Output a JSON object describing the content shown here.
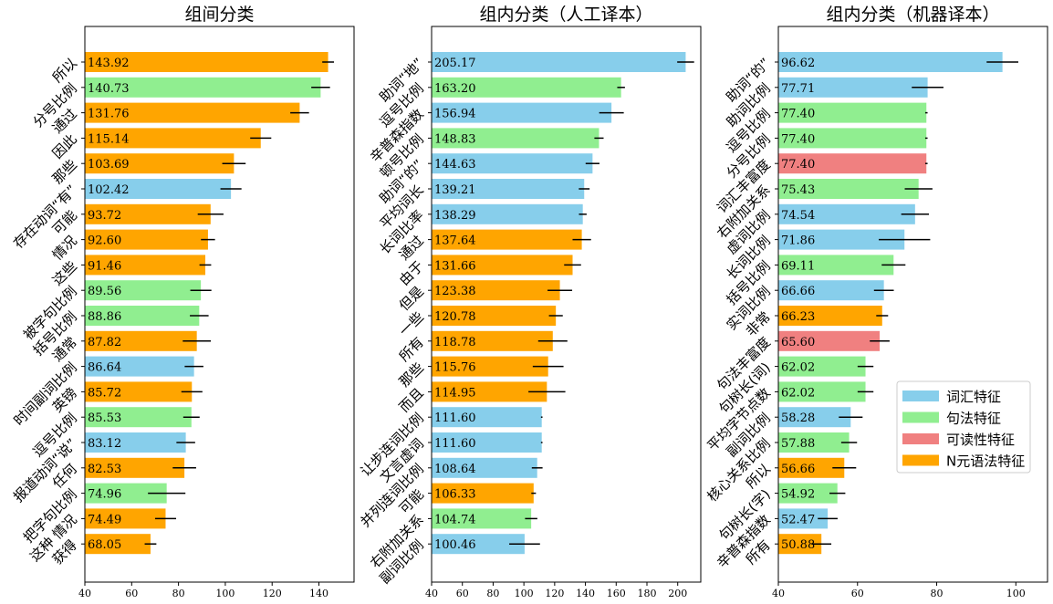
{
  "colors": {
    "词汇特征": "#87ceeb",
    "句法特征": "#90ee90",
    "可读性特征": "#f08080",
    "N元语法特征": "#ffa500"
  },
  "legend": {
    "placement": "right",
    "entries": [
      {
        "label": "词汇特征",
        "group": "词汇特征"
      },
      {
        "label": "句法特征",
        "group": "句法特征"
      },
      {
        "label": "可读性特征",
        "group": "可读性特征"
      },
      {
        "label": "N元语法特征",
        "group": "N元语法特征"
      }
    ]
  },
  "chart_data": [
    {
      "type": "bar",
      "orientation": "horizontal",
      "title": "组间分类",
      "xlim": [
        40,
        155
      ],
      "xticks": [
        40,
        60,
        80,
        100,
        120,
        140
      ],
      "bars": [
        {
          "label": "所以",
          "value": 143.92,
          "value_label": "143.92",
          "err": 2.5,
          "group": "N元语法特征"
        },
        {
          "label": "分号比例",
          "value": 140.73,
          "value_label": "140.73",
          "err": 4,
          "group": "句法特征"
        },
        {
          "label": "通过",
          "value": 131.76,
          "value_label": "131.76",
          "err": 4,
          "group": "N元语法特征"
        },
        {
          "label": "因此",
          "value": 115.14,
          "value_label": "115.14",
          "err": 4.5,
          "group": "N元语法特征"
        },
        {
          "label": "那些",
          "value": 103.69,
          "value_label": "103.69",
          "err": 5,
          "group": "N元语法特征"
        },
        {
          "label": "存在动词“有”",
          "value": 102.42,
          "value_label": "102.42",
          "err": 4.5,
          "group": "词汇特征"
        },
        {
          "label": "可能",
          "value": 93.72,
          "value_label": "93.72",
          "err": 5.5,
          "group": "N元语法特征"
        },
        {
          "label": "情况",
          "value": 92.6,
          "value_label": "92.60",
          "err": 3,
          "group": "N元语法特征"
        },
        {
          "label": "这些",
          "value": 91.46,
          "value_label": "91.46",
          "err": 2.5,
          "group": "N元语法特征"
        },
        {
          "label": "被字句比例",
          "value": 89.56,
          "value_label": "89.56",
          "err": 4.5,
          "group": "句法特征"
        },
        {
          "label": "括号比例",
          "value": 88.86,
          "value_label": "88.86",
          "err": 4,
          "group": "句法特征"
        },
        {
          "label": "通常",
          "value": 87.82,
          "value_label": "87.82",
          "err": 6,
          "group": "N元语法特征"
        },
        {
          "label": "时间副词比例",
          "value": 86.64,
          "value_label": "86.64",
          "err": 4,
          "group": "词汇特征"
        },
        {
          "label": "英镑",
          "value": 85.72,
          "value_label": "85.72",
          "err": 4.5,
          "group": "N元语法特征"
        },
        {
          "label": "逗号比例",
          "value": 85.53,
          "value_label": "85.53",
          "err": 3.5,
          "group": "句法特征"
        },
        {
          "label": "报道动词“说”",
          "value": 83.12,
          "value_label": "83.12",
          "err": 4,
          "group": "词汇特征"
        },
        {
          "label": "任何",
          "value": 82.53,
          "value_label": "82.53",
          "err": 5,
          "group": "N元语法特征"
        },
        {
          "label": "把字句比例",
          "value": 74.96,
          "value_label": "74.96",
          "err": 8,
          "group": "句法特征"
        },
        {
          "label": "这种 情况",
          "value": 74.49,
          "value_label": "74.49",
          "err": 4.5,
          "group": "N元语法特征"
        },
        {
          "label": "获得",
          "value": 68.05,
          "value_label": "68.05",
          "err": 2.5,
          "group": "N元语法特征"
        }
      ]
    },
    {
      "type": "bar",
      "orientation": "horizontal",
      "title": "组内分类（人工译本）",
      "xlim": [
        40,
        215
      ],
      "xticks": [
        40,
        60,
        80,
        100,
        120,
        140,
        160,
        180,
        200
      ],
      "bars": [
        {
          "label": "助词“地”",
          "value": 205.17,
          "value_label": "205.17",
          "err": 5.5,
          "group": "词汇特征"
        },
        {
          "label": "逗号比例",
          "value": 163.2,
          "value_label": "163.20",
          "err": 2.5,
          "group": "句法特征"
        },
        {
          "label": "辛普森指数",
          "value": 156.94,
          "value_label": "156.94",
          "err": 8,
          "group": "词汇特征"
        },
        {
          "label": "顿号比例",
          "value": 148.83,
          "value_label": "148.83",
          "err": 3,
          "group": "句法特征"
        },
        {
          "label": "助词“的”",
          "value": 144.63,
          "value_label": "144.63",
          "err": 4.5,
          "group": "词汇特征"
        },
        {
          "label": "平均词长",
          "value": 139.21,
          "value_label": "139.21",
          "err": 3.5,
          "group": "词汇特征"
        },
        {
          "label": "长词比率",
          "value": 138.29,
          "value_label": "138.29",
          "err": 2.5,
          "group": "词汇特征"
        },
        {
          "label": "通过",
          "value": 137.64,
          "value_label": "137.64",
          "err": 6,
          "group": "N元语法特征"
        },
        {
          "label": "由于",
          "value": 131.66,
          "value_label": "131.66",
          "err": 5.5,
          "group": "N元语法特征"
        },
        {
          "label": "但是",
          "value": 123.38,
          "value_label": "123.38",
          "err": 8,
          "group": "N元语法特征"
        },
        {
          "label": "一些",
          "value": 120.78,
          "value_label": "120.78",
          "err": 4.5,
          "group": "N元语法特征"
        },
        {
          "label": "所有",
          "value": 118.78,
          "value_label": "118.78",
          "err": 9.5,
          "group": "N元语法特征"
        },
        {
          "label": "那些",
          "value": 115.76,
          "value_label": "115.76",
          "err": 10,
          "group": "N元语法特征"
        },
        {
          "label": "而且",
          "value": 114.95,
          "value_label": "114.95",
          "err": 12,
          "group": "N元语法特征"
        },
        {
          "label": "让步连词比例",
          "value": 111.6,
          "value_label": "111.60",
          "err": 0.5,
          "group": "词汇特征"
        },
        {
          "label": "文言虚词",
          "value": 111.6,
          "value_label": "111.60",
          "err": 0.5,
          "group": "词汇特征"
        },
        {
          "label": "并列连词比例",
          "value": 108.64,
          "value_label": "108.64",
          "err": 3.5,
          "group": "词汇特征"
        },
        {
          "label": "可能",
          "value": 106.33,
          "value_label": "106.33",
          "err": 1.5,
          "group": "N元语法特征"
        },
        {
          "label": "右附加关系",
          "value": 104.74,
          "value_label": "104.74",
          "err": 4,
          "group": "句法特征"
        },
        {
          "label": "副词比例",
          "value": 100.46,
          "value_label": "100.46",
          "err": 10,
          "group": "词汇特征"
        }
      ]
    },
    {
      "type": "bar",
      "orientation": "horizontal",
      "title": "组内分类（机器译本）",
      "xlim": [
        40,
        108
      ],
      "xticks": [
        40,
        60,
        80,
        100
      ],
      "bars": [
        {
          "label": "助词“的”",
          "value": 96.62,
          "value_label": "96.62",
          "err": 4,
          "group": "词汇特征"
        },
        {
          "label": "助词比例",
          "value": 77.71,
          "value_label": "77.71",
          "err": 4,
          "group": "词汇特征"
        },
        {
          "label": "逗号比例",
          "value": 77.4,
          "value_label": "77.40",
          "err": 0.3,
          "group": "句法特征"
        },
        {
          "label": "分号比例",
          "value": 77.4,
          "value_label": "77.40",
          "err": 0.3,
          "group": "句法特征"
        },
        {
          "label": "词汇丰富度",
          "value": 77.4,
          "value_label": "77.40",
          "err": 0.3,
          "group": "可读性特征"
        },
        {
          "label": "右附加关系",
          "value": 75.43,
          "value_label": "75.43",
          "err": 3.5,
          "group": "句法特征"
        },
        {
          "label": "虚词比例",
          "value": 74.54,
          "value_label": "74.54",
          "err": 3.5,
          "group": "词汇特征"
        },
        {
          "label": "长词比例",
          "value": 71.86,
          "value_label": "71.86",
          "err": 6.5,
          "group": "词汇特征"
        },
        {
          "label": "括号比例",
          "value": 69.11,
          "value_label": "69.11",
          "err": 3,
          "group": "句法特征"
        },
        {
          "label": "实词比例",
          "value": 66.66,
          "value_label": "66.66",
          "err": 2.5,
          "group": "词汇特征"
        },
        {
          "label": "非常",
          "value": 66.23,
          "value_label": "66.23",
          "err": 1.5,
          "group": "N元语法特征"
        },
        {
          "label": "句法丰富度",
          "value": 65.6,
          "value_label": "65.60",
          "err": 2.5,
          "group": "可读性特征"
        },
        {
          "label": "句树长(词)",
          "value": 62.02,
          "value_label": "62.02",
          "err": 2,
          "group": "句法特征"
        },
        {
          "label": "平均字节点数",
          "value": 62.02,
          "value_label": "62.02",
          "err": 2,
          "group": "句法特征"
        },
        {
          "label": "副词比例",
          "value": 58.28,
          "value_label": "58.28",
          "err": 3,
          "group": "词汇特征"
        },
        {
          "label": "核心关系比例",
          "value": 57.88,
          "value_label": "57.88",
          "err": 2,
          "group": "句法特征"
        },
        {
          "label": "所以",
          "value": 56.66,
          "value_label": "56.66",
          "err": 3,
          "group": "N元语法特征"
        },
        {
          "label": "句树长(字)",
          "value": 54.92,
          "value_label": "54.92",
          "err": 2,
          "group": "句法特征"
        },
        {
          "label": "辛普森指数",
          "value": 52.47,
          "value_label": "52.47",
          "err": 2.5,
          "group": "词汇特征"
        },
        {
          "label": "所有",
          "value": 50.88,
          "value_label": "50.88",
          "err": 2.5,
          "group": "N元语法特征"
        }
      ]
    }
  ]
}
